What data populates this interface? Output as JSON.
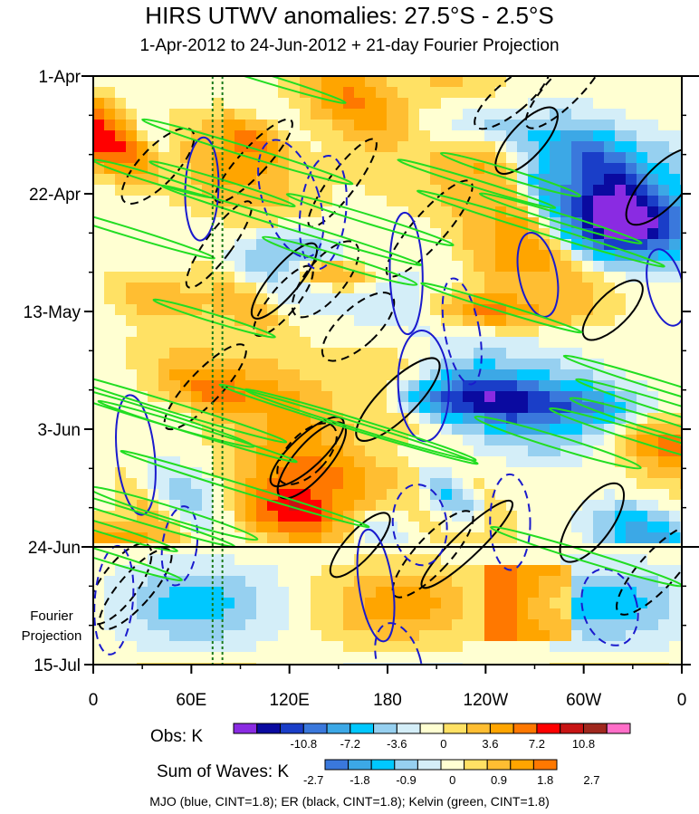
{
  "title": "HIRS UTWV anomalies: 27.5°S - 2.5°S",
  "subtitle": "1-Apr-2012 to 24-Jun-2012 + 21-day Fourier Projection",
  "footer": "MJO (blue, CINT=1.8); ER (black, CINT=1.8); Kelvin (green, CINT=1.8)",
  "chart_data": {
    "type": "heatmap",
    "xlabel": "",
    "ylabel": "",
    "x_ticks": [
      "0",
      "60E",
      "120E",
      "180",
      "120W",
      "60W",
      "0"
    ],
    "x_range_deg_east": [
      0,
      360
    ],
    "y_ticks": [
      "1-Apr",
      "22-Apr",
      "13-May",
      "3-Jun",
      "24-Jun",
      "15-Jul"
    ],
    "y_range_days_from_start": [
      0,
      105
    ],
    "observed_end": "24-Jun",
    "projection_label": [
      "Fourier",
      "Projection"
    ],
    "vertical_reference_lines_lon": [
      73,
      79
    ],
    "legends": [
      {
        "name": "Obs: K",
        "levels": [
          "-10.8",
          "-7.2",
          "-3.6",
          "0",
          "3.6",
          "7.2",
          "10.8"
        ],
        "colors": [
          "#8a2be2",
          "#0a0aa0",
          "#1a3ec8",
          "#3a78dc",
          "#3ca8e6",
          "#00c8ff",
          "#96d0f0",
          "#d4eef8",
          "#ffffd2",
          "#ffe164",
          "#ffbe32",
          "#ffa500",
          "#ff7800",
          "#ff0000",
          "#c81414",
          "#a0281e",
          "#ff6ec8"
        ]
      },
      {
        "name": "Sum of Waves: K",
        "levels": [
          "-2.7",
          "-1.8",
          "-0.9",
          "0",
          "0.9",
          "1.8",
          "2.7"
        ],
        "colors": [
          "#3a78dc",
          "#3ca8e6",
          "#00c8ff",
          "#96d0f0",
          "#d4eef8",
          "#ffffd2",
          "#ffe164",
          "#ffbe32",
          "#ffa500",
          "#ff7800"
        ]
      }
    ],
    "contour_series": [
      {
        "name": "MJO",
        "color": "#1a1acd",
        "cint": 1.8
      },
      {
        "name": "ER",
        "color": "#000000",
        "cint": 1.8
      },
      {
        "name": "Kelvin",
        "color": "#22dd22",
        "cint": 1.8
      }
    ]
  }
}
